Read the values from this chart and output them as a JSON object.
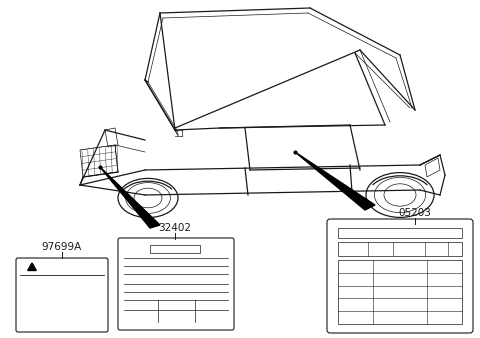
{
  "bg_color": "#ffffff",
  "line_color": "#1a1a1a",
  "lw_main": 0.9,
  "lw_thin": 0.5,
  "lw_thick": 1.2,
  "label_97699A": "97699A",
  "label_32402": "32402",
  "label_05203": "05203",
  "fig_width": 4.8,
  "fig_height": 3.38,
  "dpi": 100,
  "car_scale": 1.0,
  "font_size_label": 7.5
}
